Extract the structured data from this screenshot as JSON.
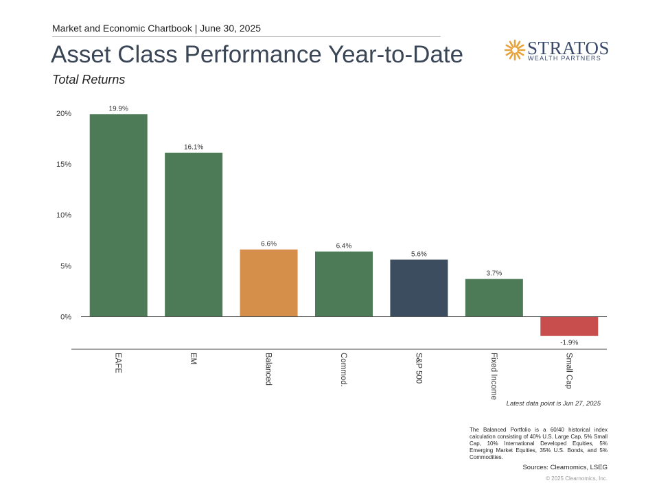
{
  "header": {
    "chartbook_line": "Market and Economic Chartbook | June 30, 2025",
    "title": "Asset Class Performance Year-to-Date",
    "subtitle": "Total Returns"
  },
  "logo": {
    "name": "STRATOS",
    "tagline": "WEALTH PARTNERS",
    "icon": "sunburst-icon",
    "color": "#3a4a6b",
    "accent": "#e8a23a"
  },
  "chart_data": {
    "type": "bar",
    "title": "Asset Class Performance Year-to-Date",
    "subtitle": "Total Returns",
    "categories": [
      "EAFE",
      "EM",
      "Balanced",
      "Commod.",
      "S&P 500",
      "Fixed Income",
      "Small Cap"
    ],
    "values": [
      19.9,
      16.1,
      6.6,
      6.4,
      5.6,
      3.7,
      -1.9
    ],
    "value_labels": [
      "19.9%",
      "16.1%",
      "6.6%",
      "6.4%",
      "5.6%",
      "3.7%",
      "-1.9%"
    ],
    "colors": [
      "#4e7b57",
      "#4e7b57",
      "#d58f4a",
      "#4e7b57",
      "#3b4d5e",
      "#4e7b57",
      "#c84d4d"
    ],
    "ylim": [
      -3.2,
      21
    ],
    "yticks": [
      0,
      5,
      10,
      15,
      20
    ],
    "ytick_labels": [
      "0%",
      "5%",
      "10%",
      "15%",
      "20%"
    ],
    "xlabel": "",
    "ylabel": "",
    "grid": false,
    "legend": "none"
  },
  "notes": {
    "latest_data": "Latest data point is Jun 27, 2025",
    "balanced_footnote": "The Balanced Portfolio is a 60/40 historical index calculation consisting of 40% U.S. Large Cap, 5% Small Cap, 10% International Developed Equities, 5% Emerging Market Equities, 35% U.S. Bonds, and 5% Commodities.",
    "sources": "Sources: Clearnomics, LSEG",
    "copyright": "© 2025 Clearnomics, Inc."
  }
}
